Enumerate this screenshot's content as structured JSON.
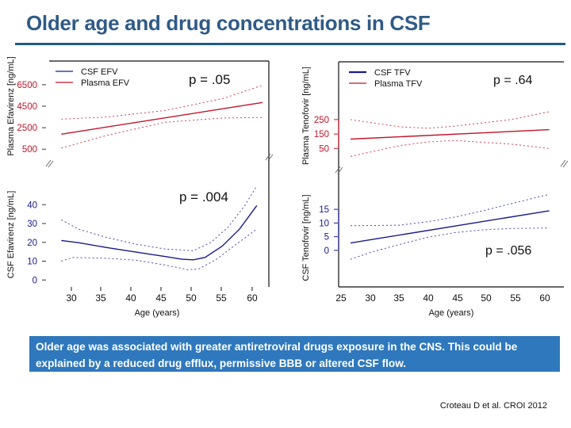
{
  "slide": {
    "title": "Older age and drug concentrations in CSF",
    "callout": "Older age was associated with greater antiretroviral drugs exposure in the CNS.  This could be  explained by a reduced drug efflux, permissive BBB or altered CSF flow.",
    "citation": "Croteau D et al. CROI 2012",
    "colors": {
      "title": "#2f5b86",
      "rule": "#1f5a8a",
      "callout_bg": "#2f78bd",
      "csf": "#1a1a8c",
      "plasma": "#c0152a"
    }
  },
  "chart_data": [
    {
      "type": "line",
      "title": "Efavirenz",
      "xlabel": "Age (years)",
      "x_ticks": [
        30,
        35,
        40,
        45,
        50,
        55,
        60
      ],
      "xlim": [
        26,
        62
      ],
      "legend": [
        "CSF EFV",
        "Plasma EFV"
      ],
      "legend_placement": "top-left",
      "panels": [
        {
          "name": "plasma",
          "ylabel": "Plasma Efavirenz [ng/mL]",
          "y_ticks": [
            500,
            2500,
            4500,
            6500
          ],
          "ylim": [
            0,
            7600
          ],
          "p_value": "p = .05",
          "series": [
            {
              "name": "Plasma EFV",
              "style": "solid",
              "x": [
                27,
                62
              ],
              "y": [
                1900,
                4850
              ]
            },
            {
              "name": "Plasma EFV upper CI",
              "style": "dotted",
              "x": [
                27,
                35,
                45,
                55,
                62
              ],
              "y": [
                3300,
                3500,
                4100,
                5200,
                6450
              ]
            },
            {
              "name": "Plasma EFV lower CI",
              "style": "dotted",
              "x": [
                27,
                35,
                45,
                55,
                62
              ],
              "y": [
                600,
                1800,
                3000,
                3400,
                3450
              ]
            }
          ]
        },
        {
          "name": "csf",
          "ylabel": "CSF Efavirenz [ng/mL]",
          "y_ticks": [
            0,
            10,
            20,
            30,
            40
          ],
          "ylim": [
            -2,
            54
          ],
          "p_value": "p = .004",
          "series": [
            {
              "name": "CSF EFV",
              "style": "solid",
              "x": [
                27,
                30,
                35,
                40,
                45,
                48,
                50,
                52,
                55,
                58,
                61
              ],
              "y": [
                21,
                19.8,
                17.2,
                14.8,
                12.5,
                11,
                10.7,
                12,
                18,
                27,
                39.5
              ]
            },
            {
              "name": "CSF EFV upper CI",
              "style": "dotted",
              "x": [
                27,
                30,
                35,
                40,
                45,
                50,
                53,
                56,
                59,
                61
              ],
              "y": [
                32,
                27,
                22.5,
                19,
                16.5,
                15.5,
                20,
                28,
                40,
                50
              ]
            },
            {
              "name": "CSF EFV lower CI",
              "style": "dotted",
              "x": [
                27,
                29,
                35,
                40,
                45,
                49,
                51,
                54,
                57,
                61
              ],
              "y": [
                10,
                12,
                11.5,
                10.5,
                8,
                5.5,
                6,
                11,
                18,
                27
              ]
            }
          ]
        }
      ]
    },
    {
      "type": "line",
      "title": "Tenofovir",
      "xlabel": "Age (years)",
      "x_ticks": [
        25,
        30,
        35,
        40,
        45,
        50,
        55,
        60
      ],
      "xlim": [
        25,
        63.5
      ],
      "legend": [
        "CSF TFV",
        "Plasma TFV"
      ],
      "legend_placement": "top-left",
      "panels": [
        {
          "name": "plasma",
          "ylabel": "Plasma Tenofovir [ng/mL]",
          "y_ticks": [
            50,
            150,
            250
          ],
          "ylim": [
            -20,
            420
          ],
          "p_value": "p = .64",
          "series": [
            {
              "name": "Plasma TFV",
              "style": "solid",
              "x": [
                26,
                62
              ],
              "y": [
                115,
                180
              ]
            },
            {
              "name": "Plasma TFV upper CI",
              "style": "dotted",
              "x": [
                26,
                35,
                40,
                45,
                55,
                62
              ],
              "y": [
                250,
                200,
                190,
                205,
                250,
                305
              ]
            },
            {
              "name": "Plasma TFV lower CI",
              "style": "dotted",
              "x": [
                26,
                35,
                40,
                45,
                55,
                62
              ],
              "y": [
                -5,
                70,
                95,
                105,
                80,
                50
              ]
            }
          ]
        },
        {
          "name": "csf",
          "ylabel": "CSF Tenofovir [ng/mL]",
          "y_ticks": [
            0,
            5,
            10,
            15
          ],
          "ylim": [
            -7,
            22
          ],
          "p_value": "p = .056",
          "series": [
            {
              "name": "CSF TFV",
              "style": "solid",
              "x": [
                26,
                62
              ],
              "y": [
                2.7,
                14.5
              ]
            },
            {
              "name": "CSF TFV upper CI",
              "style": "dotted",
              "x": [
                26,
                35,
                40,
                45,
                50,
                55,
                62
              ],
              "y": [
                9,
                9.2,
                10.5,
                12.2,
                14.5,
                17,
                20.5
              ]
            },
            {
              "name": "CSF TFV lower CI",
              "style": "dotted",
              "x": [
                26,
                30,
                35,
                40,
                45,
                50,
                55,
                62
              ],
              "y": [
                -3.3,
                -0.5,
                2.2,
                4.8,
                6.5,
                7.5,
                8,
                8.2
              ]
            }
          ]
        }
      ]
    }
  ]
}
